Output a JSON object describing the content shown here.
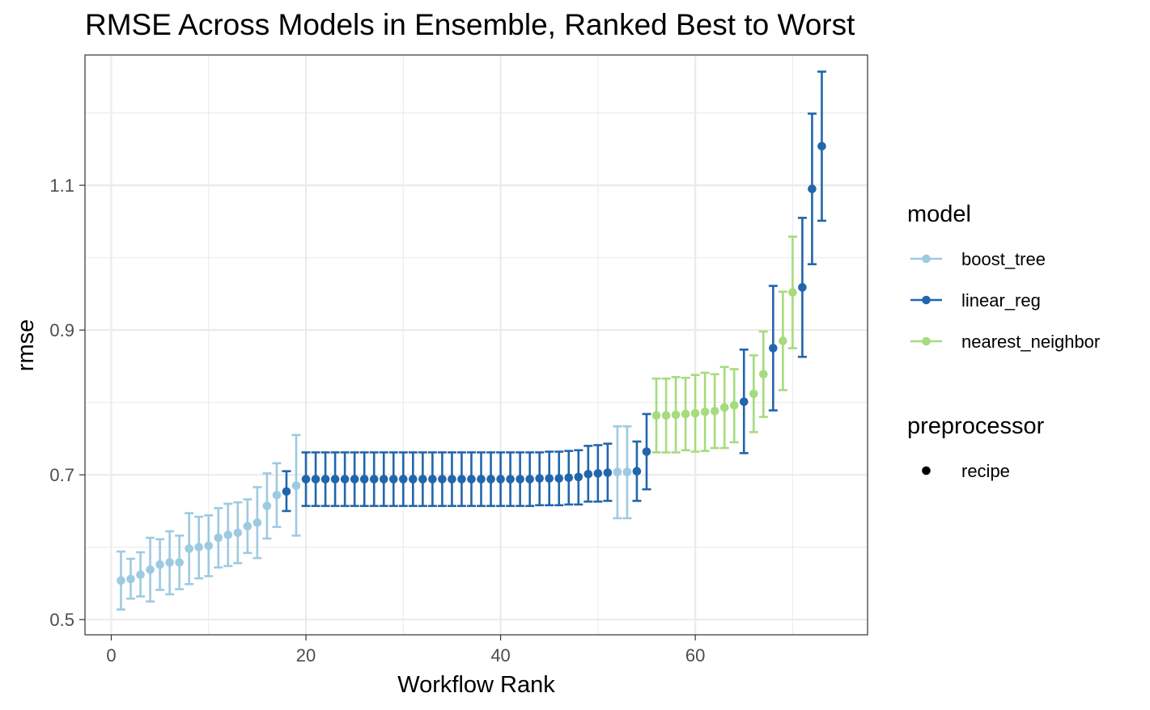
{
  "chart_data": {
    "type": "scatter",
    "title": "RMSE Across Models in Ensemble, Ranked Best to Worst",
    "xlabel": "Workflow Rank",
    "ylabel": "rmse",
    "xlim": [
      -2.7,
      77.7
    ],
    "ylim": [
      0.479,
      1.28
    ],
    "x_ticks": [
      0,
      20,
      40,
      60
    ],
    "y_ticks": [
      0.5,
      0.7,
      0.9,
      1.1
    ],
    "x_tick_labels": [
      "0",
      "20",
      "40",
      "60"
    ],
    "y_tick_labels": [
      "0.5",
      "0.7",
      "0.9",
      "1.1"
    ],
    "grid": true,
    "legend_placement": "right",
    "legend": {
      "model_title": "model",
      "preprocessor_title": "preprocessor",
      "model_entries": [
        {
          "key": "boost_tree",
          "label": "boost_tree",
          "color": "#9ECAE1"
        },
        {
          "key": "linear_reg",
          "label": "linear_reg",
          "color": "#2166AC"
        },
        {
          "key": "nearest_neighbor",
          "label": "nearest_neighbor",
          "color": "#A6DB7E"
        }
      ],
      "preprocessor_entries": [
        {
          "label": "recipe",
          "color": "#000000"
        }
      ]
    },
    "colors": {
      "boost_tree": "#9ECAE1",
      "linear_reg": "#2166AC",
      "nearest_neighbor": "#A6DB7E"
    },
    "points": [
      {
        "rank": 1,
        "model": "boost_tree",
        "rmse": 0.554,
        "lower": 0.514,
        "upper": 0.594
      },
      {
        "rank": 2,
        "model": "boost_tree",
        "rmse": 0.556,
        "lower": 0.529,
        "upper": 0.584
      },
      {
        "rank": 3,
        "model": "boost_tree",
        "rmse": 0.562,
        "lower": 0.532,
        "upper": 0.593
      },
      {
        "rank": 4,
        "model": "boost_tree",
        "rmse": 0.569,
        "lower": 0.525,
        "upper": 0.613
      },
      {
        "rank": 5,
        "model": "boost_tree",
        "rmse": 0.576,
        "lower": 0.541,
        "upper": 0.611
      },
      {
        "rank": 6,
        "model": "boost_tree",
        "rmse": 0.579,
        "lower": 0.535,
        "upper": 0.622
      },
      {
        "rank": 7,
        "model": "boost_tree",
        "rmse": 0.579,
        "lower": 0.542,
        "upper": 0.616
      },
      {
        "rank": 8,
        "model": "boost_tree",
        "rmse": 0.598,
        "lower": 0.549,
        "upper": 0.647
      },
      {
        "rank": 9,
        "model": "boost_tree",
        "rmse": 0.6,
        "lower": 0.557,
        "upper": 0.642
      },
      {
        "rank": 10,
        "model": "boost_tree",
        "rmse": 0.602,
        "lower": 0.56,
        "upper": 0.644
      },
      {
        "rank": 11,
        "model": "boost_tree",
        "rmse": 0.613,
        "lower": 0.572,
        "upper": 0.654
      },
      {
        "rank": 12,
        "model": "boost_tree",
        "rmse": 0.617,
        "lower": 0.574,
        "upper": 0.66
      },
      {
        "rank": 13,
        "model": "boost_tree",
        "rmse": 0.62,
        "lower": 0.578,
        "upper": 0.662
      },
      {
        "rank": 14,
        "model": "boost_tree",
        "rmse": 0.629,
        "lower": 0.592,
        "upper": 0.666
      },
      {
        "rank": 15,
        "model": "boost_tree",
        "rmse": 0.634,
        "lower": 0.585,
        "upper": 0.683
      },
      {
        "rank": 16,
        "model": "boost_tree",
        "rmse": 0.657,
        "lower": 0.612,
        "upper": 0.702
      },
      {
        "rank": 17,
        "model": "boost_tree",
        "rmse": 0.672,
        "lower": 0.628,
        "upper": 0.716
      },
      {
        "rank": 18,
        "model": "linear_reg",
        "rmse": 0.677,
        "lower": 0.65,
        "upper": 0.705
      },
      {
        "rank": 19,
        "model": "boost_tree",
        "rmse": 0.685,
        "lower": 0.616,
        "upper": 0.755
      },
      {
        "rank": 20,
        "model": "linear_reg",
        "rmse": 0.694,
        "lower": 0.657,
        "upper": 0.731
      },
      {
        "rank": 21,
        "model": "linear_reg",
        "rmse": 0.694,
        "lower": 0.657,
        "upper": 0.731
      },
      {
        "rank": 22,
        "model": "linear_reg",
        "rmse": 0.694,
        "lower": 0.657,
        "upper": 0.731
      },
      {
        "rank": 23,
        "model": "linear_reg",
        "rmse": 0.694,
        "lower": 0.657,
        "upper": 0.731
      },
      {
        "rank": 24,
        "model": "linear_reg",
        "rmse": 0.694,
        "lower": 0.657,
        "upper": 0.731
      },
      {
        "rank": 25,
        "model": "linear_reg",
        "rmse": 0.694,
        "lower": 0.657,
        "upper": 0.731
      },
      {
        "rank": 26,
        "model": "linear_reg",
        "rmse": 0.694,
        "lower": 0.657,
        "upper": 0.731
      },
      {
        "rank": 27,
        "model": "linear_reg",
        "rmse": 0.694,
        "lower": 0.657,
        "upper": 0.731
      },
      {
        "rank": 28,
        "model": "linear_reg",
        "rmse": 0.694,
        "lower": 0.657,
        "upper": 0.731
      },
      {
        "rank": 29,
        "model": "linear_reg",
        "rmse": 0.694,
        "lower": 0.657,
        "upper": 0.731
      },
      {
        "rank": 30,
        "model": "linear_reg",
        "rmse": 0.694,
        "lower": 0.657,
        "upper": 0.731
      },
      {
        "rank": 31,
        "model": "linear_reg",
        "rmse": 0.694,
        "lower": 0.657,
        "upper": 0.731
      },
      {
        "rank": 32,
        "model": "linear_reg",
        "rmse": 0.694,
        "lower": 0.657,
        "upper": 0.731
      },
      {
        "rank": 33,
        "model": "linear_reg",
        "rmse": 0.694,
        "lower": 0.657,
        "upper": 0.731
      },
      {
        "rank": 34,
        "model": "linear_reg",
        "rmse": 0.694,
        "lower": 0.657,
        "upper": 0.731
      },
      {
        "rank": 35,
        "model": "linear_reg",
        "rmse": 0.694,
        "lower": 0.657,
        "upper": 0.731
      },
      {
        "rank": 36,
        "model": "linear_reg",
        "rmse": 0.694,
        "lower": 0.657,
        "upper": 0.731
      },
      {
        "rank": 37,
        "model": "linear_reg",
        "rmse": 0.694,
        "lower": 0.657,
        "upper": 0.731
      },
      {
        "rank": 38,
        "model": "linear_reg",
        "rmse": 0.694,
        "lower": 0.657,
        "upper": 0.731
      },
      {
        "rank": 39,
        "model": "linear_reg",
        "rmse": 0.694,
        "lower": 0.657,
        "upper": 0.731
      },
      {
        "rank": 40,
        "model": "linear_reg",
        "rmse": 0.694,
        "lower": 0.657,
        "upper": 0.731
      },
      {
        "rank": 41,
        "model": "linear_reg",
        "rmse": 0.694,
        "lower": 0.657,
        "upper": 0.731
      },
      {
        "rank": 42,
        "model": "linear_reg",
        "rmse": 0.694,
        "lower": 0.657,
        "upper": 0.731
      },
      {
        "rank": 43,
        "model": "linear_reg",
        "rmse": 0.694,
        "lower": 0.657,
        "upper": 0.731
      },
      {
        "rank": 44,
        "model": "linear_reg",
        "rmse": 0.695,
        "lower": 0.658,
        "upper": 0.731
      },
      {
        "rank": 45,
        "model": "linear_reg",
        "rmse": 0.695,
        "lower": 0.658,
        "upper": 0.732
      },
      {
        "rank": 46,
        "model": "linear_reg",
        "rmse": 0.695,
        "lower": 0.658,
        "upper": 0.732
      },
      {
        "rank": 47,
        "model": "linear_reg",
        "rmse": 0.696,
        "lower": 0.659,
        "upper": 0.733
      },
      {
        "rank": 48,
        "model": "linear_reg",
        "rmse": 0.697,
        "lower": 0.659,
        "upper": 0.734
      },
      {
        "rank": 49,
        "model": "linear_reg",
        "rmse": 0.701,
        "lower": 0.663,
        "upper": 0.74
      },
      {
        "rank": 50,
        "model": "linear_reg",
        "rmse": 0.702,
        "lower": 0.663,
        "upper": 0.741
      },
      {
        "rank": 51,
        "model": "linear_reg",
        "rmse": 0.703,
        "lower": 0.664,
        "upper": 0.743
      },
      {
        "rank": 52,
        "model": "boost_tree",
        "rmse": 0.704,
        "lower": 0.64,
        "upper": 0.767
      },
      {
        "rank": 53,
        "model": "boost_tree",
        "rmse": 0.704,
        "lower": 0.64,
        "upper": 0.767
      },
      {
        "rank": 54,
        "model": "linear_reg",
        "rmse": 0.705,
        "lower": 0.664,
        "upper": 0.746
      },
      {
        "rank": 55,
        "model": "linear_reg",
        "rmse": 0.732,
        "lower": 0.68,
        "upper": 0.784
      },
      {
        "rank": 56,
        "model": "nearest_neighbor",
        "rmse": 0.782,
        "lower": 0.731,
        "upper": 0.833
      },
      {
        "rank": 57,
        "model": "nearest_neighbor",
        "rmse": 0.782,
        "lower": 0.731,
        "upper": 0.833
      },
      {
        "rank": 58,
        "model": "nearest_neighbor",
        "rmse": 0.783,
        "lower": 0.731,
        "upper": 0.835
      },
      {
        "rank": 59,
        "model": "nearest_neighbor",
        "rmse": 0.784,
        "lower": 0.734,
        "upper": 0.834
      },
      {
        "rank": 60,
        "model": "nearest_neighbor",
        "rmse": 0.785,
        "lower": 0.732,
        "upper": 0.838
      },
      {
        "rank": 61,
        "model": "nearest_neighbor",
        "rmse": 0.787,
        "lower": 0.733,
        "upper": 0.841
      },
      {
        "rank": 62,
        "model": "nearest_neighbor",
        "rmse": 0.788,
        "lower": 0.737,
        "upper": 0.839
      },
      {
        "rank": 63,
        "model": "nearest_neighbor",
        "rmse": 0.793,
        "lower": 0.737,
        "upper": 0.849
      },
      {
        "rank": 64,
        "model": "nearest_neighbor",
        "rmse": 0.796,
        "lower": 0.745,
        "upper": 0.846
      },
      {
        "rank": 65,
        "model": "linear_reg",
        "rmse": 0.801,
        "lower": 0.73,
        "upper": 0.873
      },
      {
        "rank": 66,
        "model": "nearest_neighbor",
        "rmse": 0.812,
        "lower": 0.759,
        "upper": 0.865
      },
      {
        "rank": 67,
        "model": "nearest_neighbor",
        "rmse": 0.839,
        "lower": 0.78,
        "upper": 0.898
      },
      {
        "rank": 68,
        "model": "linear_reg",
        "rmse": 0.875,
        "lower": 0.789,
        "upper": 0.961
      },
      {
        "rank": 69,
        "model": "nearest_neighbor",
        "rmse": 0.885,
        "lower": 0.817,
        "upper": 0.953
      },
      {
        "rank": 70,
        "model": "nearest_neighbor",
        "rmse": 0.952,
        "lower": 0.875,
        "upper": 1.029
      },
      {
        "rank": 71,
        "model": "linear_reg",
        "rmse": 0.959,
        "lower": 0.863,
        "upper": 1.055
      },
      {
        "rank": 72,
        "model": "linear_reg",
        "rmse": 1.095,
        "lower": 0.991,
        "upper": 1.199
      },
      {
        "rank": 73,
        "model": "linear_reg",
        "rmse": 1.154,
        "lower": 1.051,
        "upper": 1.257
      }
    ]
  }
}
